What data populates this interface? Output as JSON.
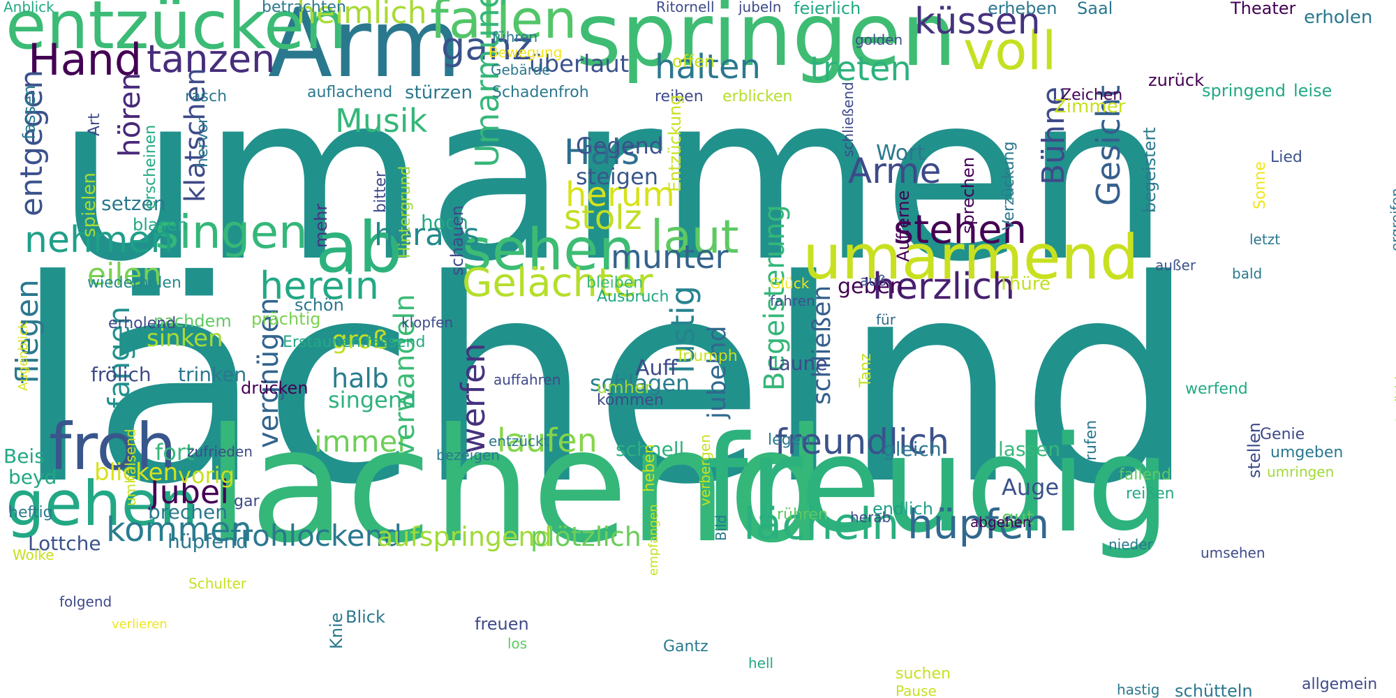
{
  "words": [
    {
      "text": "umarmen",
      "color": "#21918c",
      "rot": 0
    },
    {
      "text": "lächelnd",
      "color": "#21918c",
      "rot": 0
    },
    {
      "text": "lachend",
      "color": "#35b779",
      "rot": 0
    },
    {
      "text": "freudig",
      "color": "#2db27d",
      "rot": 0
    },
    {
      "text": "springen",
      "color": "#3fbc73",
      "rot": 0
    },
    {
      "text": "Arm",
      "color": "#2a788e",
      "rot": 0
    },
    {
      "text": "entzücken",
      "color": "#3bbb75",
      "rot": 0
    },
    {
      "text": "umarmend",
      "color": "#c8e020",
      "rot": 0
    },
    {
      "text": "sehen",
      "color": "#3dbc74",
      "rot": 0
    },
    {
      "text": "ab",
      "color": "#2db27d",
      "rot": 0
    },
    {
      "text": "froh",
      "color": "#39568c",
      "rot": 0
    },
    {
      "text": "gehen",
      "color": "#22a884",
      "rot": 0
    },
    {
      "text": "fallen",
      "color": "#52c569",
      "rot": 0
    },
    {
      "text": "voll",
      "color": "#c5e021",
      "rot": 0
    },
    {
      "text": "Hand",
      "color": "#440154",
      "rot": 0
    },
    {
      "text": "tanzen",
      "color": "#472d7b",
      "rot": 0
    },
    {
      "text": "ganz",
      "color": "#3b528b",
      "rot": 0
    },
    {
      "text": "küssen",
      "color": "#46327e",
      "rot": 0
    },
    {
      "text": "singen",
      "color": "#35b779",
      "rot": 0
    },
    {
      "text": "laut",
      "color": "#5ec962",
      "rot": 0
    },
    {
      "text": "stehen",
      "color": "#440154",
      "rot": 0
    },
    {
      "text": "lächeln",
      "color": "#2ab07f",
      "rot": 0
    },
    {
      "text": "hüpfen",
      "color": "#31688e",
      "rot": 0
    },
    {
      "text": "freundlich",
      "color": "#3b528b",
      "rot": 0
    },
    {
      "text": "Gelächter",
      "color": "#b5de2b",
      "rot": 0
    },
    {
      "text": "herzlich",
      "color": "#481f70",
      "rot": 0
    },
    {
      "text": "herein",
      "color": "#22a884",
      "rot": 0
    },
    {
      "text": "nehmen",
      "color": "#1fa088",
      "rot": 0
    },
    {
      "text": "kommen",
      "color": "#287d8e",
      "rot": 0
    },
    {
      "text": "frohlockend",
      "color": "#2a788e",
      "rot": 0
    },
    {
      "text": "aufspringend",
      "color": "#a0da39",
      "rot": 0
    },
    {
      "text": "plötzlich",
      "color": "#6ccd5a",
      "rot": 0
    },
    {
      "text": "Jubel",
      "color": "#440154",
      "rot": 0
    },
    {
      "text": "laufen",
      "color": "#86d549",
      "rot": 0
    },
    {
      "text": "immer",
      "color": "#6ece58",
      "rot": 0
    },
    {
      "text": "halten",
      "color": "#2a788e",
      "rot": 0
    },
    {
      "text": "treten",
      "color": "#2db27d",
      "rot": 0
    },
    {
      "text": "heimlich",
      "color": "#a8db34",
      "rot": 0
    },
    {
      "text": "Hals",
      "color": "#2e6f8e",
      "rot": 0
    },
    {
      "text": "herum",
      "color": "#d8e219",
      "rot": 0
    },
    {
      "text": "stolz",
      "color": "#c0df25",
      "rot": 0
    },
    {
      "text": "munter",
      "color": "#33638d",
      "rot": 0
    },
    {
      "text": "Arme",
      "color": "#3e4a89",
      "rot": 0
    },
    {
      "text": "Musik",
      "color": "#35b779",
      "rot": 0
    },
    {
      "text": "heraus",
      "color": "#238a8d",
      "rot": 0
    },
    {
      "text": "eilen",
      "color": "#7ad151",
      "rot": 0
    },
    {
      "text": "überlaut",
      "color": "#3b528b",
      "rot": 0
    },
    {
      "text": "Umarmung",
      "color": "#35b779",
      "rot": -90
    },
    {
      "text": "Begeisterung",
      "color": "#35b779",
      "rot": -90
    },
    {
      "text": "Gesicht",
      "color": "#355f8d",
      "rot": -90
    },
    {
      "text": "Bühne",
      "color": "#3e4a89",
      "rot": -90
    },
    {
      "text": "lustig",
      "color": "#25838e",
      "rot": -90
    },
    {
      "text": "fliegen",
      "color": "#2a788e",
      "rot": -90
    },
    {
      "text": "entgegen",
      "color": "#3b528b",
      "rot": -90
    },
    {
      "text": "hören",
      "color": "#482878",
      "rot": -90
    },
    {
      "text": "klatschen",
      "color": "#3e4a89",
      "rot": -90
    },
    {
      "text": "fangen",
      "color": "#21918c",
      "rot": -90
    },
    {
      "text": "vergnügen",
      "color": "#32648e",
      "rot": -90
    },
    {
      "text": "verwandeln",
      "color": "#3bbb75",
      "rot": -90
    },
    {
      "text": "werfen",
      "color": "#46327e",
      "rot": -90
    },
    {
      "text": "jubelnd",
      "color": "#31688e",
      "rot": -90
    },
    {
      "text": "schließen",
      "color": "#355f8d",
      "rot": -90
    },
    {
      "text": "groß",
      "color": "#c2df23",
      "rot": 0
    },
    {
      "text": "halb",
      "color": "#287d8e",
      "rot": 0
    },
    {
      "text": "sinken",
      "color": "#a8db34",
      "rot": 0
    },
    {
      "text": "setzen",
      "color": "#2a788e",
      "rot": 0
    },
    {
      "text": "schlagen",
      "color": "#287d8e",
      "rot": 0
    },
    {
      "text": "steigen",
      "color": "#39568c",
      "rot": 0
    },
    {
      "text": "Gegend",
      "color": "#3b528b",
      "rot": 0
    },
    {
      "text": "singend",
      "color": "#2db27d",
      "rot": 0
    },
    {
      "text": "blicken",
      "color": "#d8e219",
      "rot": 0
    },
    {
      "text": "fort",
      "color": "#35b779",
      "rot": 0
    },
    {
      "text": "vorig",
      "color": "#c8e020",
      "rot": 0
    },
    {
      "text": "Beis",
      "color": "#22a884",
      "rot": 0
    },
    {
      "text": "beyd",
      "color": "#22a884",
      "rot": 0
    },
    {
      "text": "brechen",
      "color": "#2a788e",
      "rot": 0
    },
    {
      "text": "Lottche",
      "color": "#3b528b",
      "rot": 0
    },
    {
      "text": "hüpfend",
      "color": "#2a788e",
      "rot": 0
    },
    {
      "text": "schnell",
      "color": "#2db27d",
      "rot": 0
    },
    {
      "text": "gut",
      "color": "#5ec962",
      "rot": 0
    },
    {
      "text": "lassen",
      "color": "#35b779",
      "rot": 0
    },
    {
      "text": "gleich",
      "color": "#2a788e",
      "rot": 0
    },
    {
      "text": "Auge",
      "color": "#3b528b",
      "rot": 0
    },
    {
      "text": "endlich",
      "color": "#1f9e89",
      "rot": 0
    },
    {
      "text": "Laune",
      "color": "#3e4a89",
      "rot": 0
    },
    {
      "text": "geben",
      "color": "#440154",
      "rot": 0
    },
    {
      "text": "Wort",
      "color": "#2a788e",
      "rot": 0
    },
    {
      "text": "Auff",
      "color": "#3e4a89",
      "rot": 0
    },
    {
      "text": "trinken",
      "color": "#2a788e",
      "rot": 0
    },
    {
      "text": "frölich",
      "color": "#3e4a89",
      "rot": 0
    },
    {
      "text": "nachdem",
      "color": "#5ec962",
      "rot": 0
    },
    {
      "text": "prächtig",
      "color": "#7ad151",
      "rot": 0
    },
    {
      "text": "erholend",
      "color": "#3e4a89",
      "rot": 0
    },
    {
      "text": "wiederholen",
      "color": "#238a8d",
      "rot": 0
    },
    {
      "text": "schön",
      "color": "#2a788e",
      "rot": 0
    },
    {
      "text": "bleiben",
      "color": "#3bbb75",
      "rot": 0
    },
    {
      "text": "Erstaunen.fassend",
      "color": "#22a884",
      "rot": 0
    },
    {
      "text": "klopfen",
      "color": "#3e4a89",
      "rot": 0
    },
    {
      "text": "drücken",
      "color": "#440154",
      "rot": 0
    },
    {
      "text": "Triumph",
      "color": "#c8e020",
      "rot": 0
    },
    {
      "text": "auffahren",
      "color": "#3e4a89",
      "rot": 0
    },
    {
      "text": "umher",
      "color": "#a0da39",
      "rot": 0
    },
    {
      "text": "kömmen",
      "color": "#3e4a89",
      "rot": 0
    },
    {
      "text": "Ausbruch",
      "color": "#22a884",
      "rot": 0
    },
    {
      "text": "Glück",
      "color": "#f1e51d",
      "rot": 0
    },
    {
      "text": "fahren",
      "color": "#3b528b",
      "rot": 0
    },
    {
      "text": "auß",
      "color": "#3b528b",
      "rot": 0
    },
    {
      "text": "für",
      "color": "#31688e",
      "rot": 0
    },
    {
      "text": "Thüre",
      "color": "#c2df23",
      "rot": 0
    },
    {
      "text": "rufen",
      "color": "#2a788e",
      "rot": -90
    },
    {
      "text": "Augenblick",
      "color": "#d8e219",
      "rot": -90
    },
    {
      "text": "hoch",
      "color": "#22a884",
      "rot": 0
    },
    {
      "text": "blasen",
      "color": "#22a884",
      "rot": 0
    },
    {
      "text": "spielen",
      "color": "#a8db34",
      "rot": -90
    },
    {
      "text": "mehr",
      "color": "#46327e",
      "rot": -90
    },
    {
      "text": "bitter",
      "color": "#3e4a89",
      "rot": -90
    },
    {
      "text": "Hintergrund",
      "color": "#a0da39",
      "rot": -90
    },
    {
      "text": "schauen",
      "color": "#3e4a89",
      "rot": -90
    },
    {
      "text": "erscheinen",
      "color": "#22a884",
      "rot": -90
    },
    {
      "text": "hervor",
      "color": "#2a788e",
      "rot": -90
    },
    {
      "text": "Art",
      "color": "#3e4a89",
      "rot": -90
    },
    {
      "text": "fassen",
      "color": "#2a788e",
      "rot": -90
    },
    {
      "text": "Anblick",
      "color": "#22a884",
      "rot": 0
    },
    {
      "text": "betrachten",
      "color": "#2a788e",
      "rot": 0
    },
    {
      "text": "Ritornell",
      "color": "#3e4a89",
      "rot": 0
    },
    {
      "text": "jubeln",
      "color": "#3e4a89",
      "rot": 0
    },
    {
      "text": "feierlich",
      "color": "#22a884",
      "rot": 0
    },
    {
      "text": "erheben",
      "color": "#2a788e",
      "rot": 0
    },
    {
      "text": "Saal",
      "color": "#2a788e",
      "rot": 0
    },
    {
      "text": "Theater",
      "color": "#440154",
      "rot": 0
    },
    {
      "text": "erholen",
      "color": "#2a788e",
      "rot": 0
    },
    {
      "text": "führen",
      "color": "#2a788e",
      "rot": 0
    },
    {
      "text": "Bewegung",
      "color": "#f1e51d",
      "rot": 0
    },
    {
      "text": "Gebärde",
      "color": "#2a788e",
      "rot": 0
    },
    {
      "text": "offen",
      "color": "#c8e020",
      "rot": 0
    },
    {
      "text": "golden",
      "color": "#3e4a89",
      "rot": 0
    },
    {
      "text": "zurück",
      "color": "#440154",
      "rot": 0
    },
    {
      "text": "rasch",
      "color": "#2a788e",
      "rot": 0
    },
    {
      "text": "auflachend",
      "color": "#2a788e",
      "rot": 0
    },
    {
      "text": "stürzen",
      "color": "#2a788e",
      "rot": 0
    },
    {
      "text": "Schadenfroh",
      "color": "#2a788e",
      "rot": 0
    },
    {
      "text": "reiben",
      "color": "#3e4a89",
      "rot": 0
    },
    {
      "text": "erblicken",
      "color": "#b5de2b",
      "rot": 0
    },
    {
      "text": "Zeichen",
      "color": "#440154",
      "rot": 0
    },
    {
      "text": "springend",
      "color": "#22a884",
      "rot": 0
    },
    {
      "text": "leise",
      "color": "#22a884",
      "rot": 0
    },
    {
      "text": "Zimmer",
      "color": "#c8e020",
      "rot": 0
    },
    {
      "text": "schließend",
      "color": "#3e4a89",
      "rot": -90
    },
    {
      "text": "begeistert",
      "color": "#2a788e",
      "rot": -90
    },
    {
      "text": "Lied",
      "color": "#3b528b",
      "rot": 0
    },
    {
      "text": "Sonne",
      "color": "#f1e51d",
      "rot": -90
    },
    {
      "text": "ergreifen",
      "color": "#2a788e",
      "rot": -90
    },
    {
      "text": "bald",
      "color": "#2a788e",
      "rot": 0
    },
    {
      "text": "außer",
      "color": "#3b528b",
      "rot": 0
    },
    {
      "text": "letzt",
      "color": "#2a788e",
      "rot": 0
    },
    {
      "text": "sprechen",
      "color": "#440154",
      "rot": -90
    },
    {
      "text": "Aufferne",
      "color": "#440154",
      "rot": -90
    },
    {
      "text": "Verzückung",
      "color": "#2a788e",
      "rot": -90
    },
    {
      "text": "Entzückung",
      "color": "#c8e020",
      "rot": -90
    },
    {
      "text": "Tanz",
      "color": "#c8e020",
      "rot": -90
    },
    {
      "text": "werfend",
      "color": "#22a884",
      "rot": 0
    },
    {
      "text": "gutmüthig",
      "color": "#a0da39",
      "rot": -90
    },
    {
      "text": "Genie",
      "color": "#3e4a89",
      "rot": 0
    },
    {
      "text": "umgeben",
      "color": "#2a788e",
      "rot": 0
    },
    {
      "text": "umringen",
      "color": "#a0da39",
      "rot": 0
    },
    {
      "text": "stellen",
      "color": "#3e4a89",
      "rot": -90
    },
    {
      "text": "fallend",
      "color": "#5ec962",
      "rot": 0
    },
    {
      "text": "reißen",
      "color": "#22a884",
      "rot": 0
    },
    {
      "text": "abgehen",
      "color": "#440154",
      "rot": 0
    },
    {
      "text": "nieder",
      "color": "#2a788e",
      "rot": 0
    },
    {
      "text": "umsehen",
      "color": "#3e4a89",
      "rot": 0
    },
    {
      "text": "herab",
      "color": "#3e4a89",
      "rot": 0
    },
    {
      "text": "rühren",
      "color": "#5ec962",
      "rot": 0
    },
    {
      "text": "legen",
      "color": "#2a788e",
      "rot": 0
    },
    {
      "text": "verbergen",
      "color": "#c8e020",
      "rot": -90
    },
    {
      "text": "Bild",
      "color": "#2a788e",
      "rot": -90
    },
    {
      "text": "heben",
      "color": "#c8e020",
      "rot": -90
    },
    {
      "text": "empfangen",
      "color": "#c8e020",
      "rot": -90
    },
    {
      "text": "bezeigen",
      "color": "#2a788e",
      "rot": 0
    },
    {
      "text": "entzückt",
      "color": "#2a788e",
      "rot": 0
    },
    {
      "text": "gar",
      "color": "#3e4a89",
      "rot": 0
    },
    {
      "text": "zufrieden",
      "color": "#3e4a89",
      "rot": 0
    },
    {
      "text": "umhalsend",
      "color": "#c8e020",
      "rot": -90
    },
    {
      "text": "heftig",
      "color": "#2a788e",
      "rot": 0
    },
    {
      "text": "Wolke",
      "color": "#c8e020",
      "rot": 0
    },
    {
      "text": "Schulter",
      "color": "#c8e020",
      "rot": 0
    },
    {
      "text": "folgend",
      "color": "#3e4a89",
      "rot": 0
    },
    {
      "text": "verlieren",
      "color": "#f1e51d",
      "rot": 0
    },
    {
      "text": "Knie",
      "color": "#2a788e",
      "rot": -90
    },
    {
      "text": "Blick",
      "color": "#2a788e",
      "rot": 0
    },
    {
      "text": "freuen",
      "color": "#3e4a89",
      "rot": 0
    },
    {
      "text": "los",
      "color": "#5ec962",
      "rot": 0
    },
    {
      "text": "Gantz",
      "color": "#2a788e",
      "rot": 0
    },
    {
      "text": "hell",
      "color": "#22a884",
      "rot": 0
    },
    {
      "text": "suchen",
      "color": "#c8e020",
      "rot": 0
    },
    {
      "text": "Pause",
      "color": "#c8e020",
      "rot": 0
    },
    {
      "text": "hastig",
      "color": "#2a788e",
      "rot": 0
    },
    {
      "text": "schütteln",
      "color": "#2a788e",
      "rot": 0
    },
    {
      "text": "allgemein",
      "color": "#3e4a89",
      "rot": 0
    }
  ]
}
